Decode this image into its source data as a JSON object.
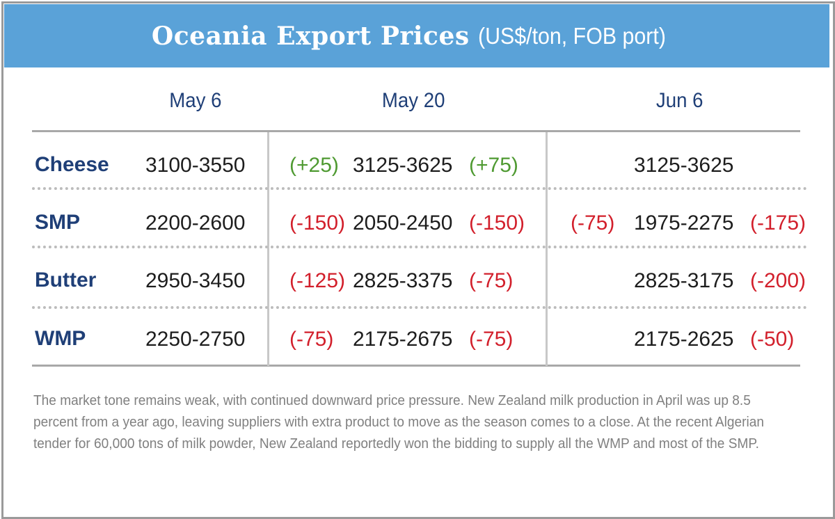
{
  "header": {
    "title": "Oceania Export Prices",
    "subtitle": "(US$/ton, FOB port)"
  },
  "columns": [
    "May 6",
    "May 20",
    "Jun 6"
  ],
  "rows": [
    {
      "product": "Cheese",
      "may6": "3100-3550",
      "may20_change_before": "(+25)",
      "may20": "3125-3625",
      "may20_change_after": "(+75)",
      "jun6_change_before": "",
      "jun6": "3125-3625",
      "jun6_change_after": ""
    },
    {
      "product": "SMP",
      "may6": "2200-2600",
      "may20_change_before": "(-150)",
      "may20": "2050-2450",
      "may20_change_after": "(-150)",
      "jun6_change_before": "(-75)",
      "jun6": "1975-2275",
      "jun6_change_after": "(-175)"
    },
    {
      "product": "Butter",
      "may6": "2950-3450",
      "may20_change_before": "(-125)",
      "may20": "2825-3375",
      "may20_change_after": "(-75)",
      "jun6_change_before": "",
      "jun6": "2825-3175",
      "jun6_change_after": "(-200)"
    },
    {
      "product": "WMP",
      "may6": "2250-2750",
      "may20_change_before": "(-75)",
      "may20": "2175-2675",
      "may20_change_after": "(-75)",
      "jun6_change_before": "",
      "jun6": "2175-2625",
      "jun6_change_after": "(-50)"
    }
  ],
  "note": "The market tone remains weak, with continued downward price pressure. New Zealand milk production in April was up 8.5 percent from a year ago, leaving suppliers with extra product to move as the season comes to a close. At the recent Algerian tender for 60,000 tons of milk powder, New Zealand reportedly won the bidding to supply all the WMP and most of the SMP.",
  "colors": {
    "banner": "#5aa2d8",
    "product_text": "#1f3f77",
    "increase": "#4f9a32",
    "decrease": "#d21f2b",
    "note_text": "#808080"
  }
}
